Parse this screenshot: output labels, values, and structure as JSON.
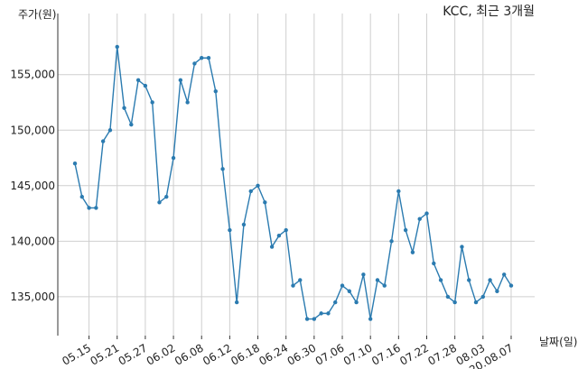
{
  "chart_data": {
    "type": "line",
    "title": "KCC, 최근 3개월",
    "xlabel": "날짜(일)",
    "ylabel": "주가(원)",
    "ylim": [
      131500,
      160500
    ],
    "grid": true,
    "x_tick_labels": [
      "05.15",
      "05.21",
      "05.27",
      "06.02",
      "06.08",
      "06.12",
      "06.18",
      "06.24",
      "06.30",
      "07.06",
      "07.10",
      "07.16",
      "07.22",
      "07.28",
      "08.03",
      "20.08.07"
    ],
    "y_ticks": [
      135000,
      140000,
      145000,
      150000,
      155000
    ],
    "y_tick_labels": [
      "135,000",
      "140,000",
      "145,000",
      "150,000",
      "155,000"
    ],
    "series": [
      {
        "color": "#2b7bb0",
        "values": [
          147000,
          144000,
          143000,
          143000,
          149000,
          150000,
          157500,
          152000,
          150500,
          154500,
          154000,
          152500,
          143500,
          144000,
          147500,
          154500,
          152500,
          156000,
          156500,
          156500,
          153500,
          146500,
          141000,
          134500,
          141500,
          144500,
          145000,
          143500,
          139500,
          140500,
          141000,
          136000,
          136500,
          133000,
          133000,
          133500,
          133500,
          134500,
          136000,
          135500,
          134500,
          137000,
          133000,
          136500,
          136000,
          140000,
          144500,
          141000,
          139000,
          142000,
          142500,
          138000,
          136500,
          135000,
          134500,
          139500,
          136500,
          134500,
          135000,
          136500,
          135500,
          137000,
          136000
        ]
      }
    ]
  }
}
